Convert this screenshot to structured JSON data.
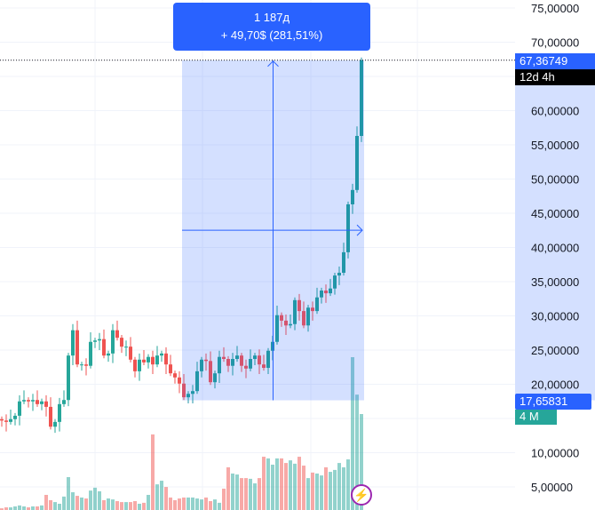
{
  "chart_data": {
    "type": "candlestick",
    "ylim": [
      2,
      76
    ],
    "y_ticks": [
      "75,00000",
      "70,00000",
      "60,00000",
      "55,00000",
      "50,00000",
      "45,00000",
      "40,00000",
      "35,00000",
      "30,00000",
      "25,00000",
      "20,00000",
      "10,00000",
      "5,00000"
    ],
    "y_tick_values": [
      75,
      70,
      60,
      55,
      50,
      45,
      40,
      35,
      30,
      25,
      20,
      10,
      5
    ],
    "grid": true,
    "first_open": 14.9,
    "close": [
      14.7,
      14.5,
      14.9,
      15.4,
      17.5,
      17.7,
      17.5,
      17.7,
      17.1,
      17.5,
      16.7,
      13.8,
      14.5,
      17.1,
      17.7,
      24.2,
      27.9,
      22.9,
      22.9,
      22.7,
      26.2,
      26.4,
      26.6,
      24.2,
      24.5,
      27.9,
      26.8,
      25.5,
      25.5,
      23.6,
      21.9,
      23.6,
      23.2,
      24.0,
      22.9,
      24.2,
      24.5,
      22.9,
      21.6,
      21.0,
      20.1,
      18.1,
      18.6,
      19.0,
      21.9,
      23.6,
      23.4,
      20.3,
      21.6,
      24.0,
      23.7,
      22.7,
      23.7,
      24.2,
      22.7,
      22.3,
      23.7,
      24.2,
      22.9,
      22.4,
      24.9,
      26.2,
      30.1,
      29.3,
      28.6,
      28.8,
      32.3,
      30.7,
      28.6,
      31.2,
      30.7,
      32.7,
      33.7,
      33.3,
      34.0,
      35.9,
      36.3,
      39.3,
      46.3,
      48.4,
      56.3,
      67.36749
    ],
    "volume_millions": [
      0.07,
      0.11,
      0.11,
      0.15,
      0.19,
      0.15,
      0.11,
      0.15,
      0.15,
      0.19,
      0.63,
      0.41,
      0.33,
      0.26,
      0.56,
      1.37,
      0.74,
      0.59,
      0.52,
      0.48,
      0.81,
      0.93,
      0.78,
      0.41,
      0.48,
      0.44,
      0.37,
      0.33,
      0.33,
      0.33,
      0.37,
      0.26,
      0.3,
      0.63,
      3.15,
      1.07,
      1.22,
      0.96,
      0.52,
      0.41,
      0.48,
      0.52,
      0.52,
      0.52,
      0.48,
      0.44,
      0.52,
      0.37,
      0.44,
      0.3,
      0.89,
      1.78,
      1.52,
      1.48,
      1.33,
      1.33,
      1.3,
      1.11,
      1.33,
      2.22,
      2.15,
      1.89,
      2.15,
      2.15,
      1.96,
      2.07,
      1.93,
      2.22,
      1.85,
      1.33,
      1.56,
      1.52,
      1.44,
      1.78,
      1.59,
      1.67,
      1.96,
      1.78,
      2.11,
      6.37,
      4.81,
      4.0
    ],
    "colors": {
      "up": "#26a69a",
      "down": "#ef5350",
      "up_in_range": "#2196a8",
      "down_in_range": "#d4546e",
      "measure": "#2962ff"
    },
    "measure": {
      "duration": "1 187д",
      "change": "+ 49,70$ (281,51%)",
      "from_price": 17.65831,
      "to_price": 67.36749,
      "start_index": 41,
      "end_index": 81
    },
    "last_price_label": "67,36749",
    "countdown_label": "12d 4h",
    "range_low_label": "17,65831",
    "volume_label": "4 M"
  }
}
